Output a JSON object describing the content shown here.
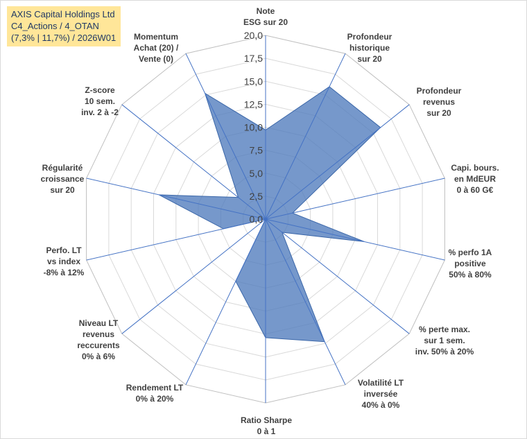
{
  "header": {
    "lines": [
      "AXIS Capital Holdings Ltd",
      "C4_Actions / 4_OTAN",
      "(7,3% | 11,7%) / 2026W01"
    ]
  },
  "chart_data": {
    "type": "radar",
    "title": "AXIS Capital Holdings Ltd",
    "rmin": 0,
    "rmax": 20,
    "tick_step": 2.5,
    "tick_labels": [
      "0,0",
      "2,5",
      "5,0",
      "7,5",
      "10,0",
      "12,5",
      "15,0",
      "17,5",
      "20,0"
    ],
    "grid": true,
    "axes": [
      {
        "label": [
          "Note",
          "ESG sur 20"
        ]
      },
      {
        "label": [
          "Profondeur",
          "historique",
          "sur 20"
        ]
      },
      {
        "label": [
          "Profondeur",
          "revenus",
          "sur 20"
        ]
      },
      {
        "label": [
          "Capi. bours.",
          "en MdEUR",
          "0 à 60 G€"
        ]
      },
      {
        "label": [
          "% perfo 1A",
          "positive",
          "50% à 80%"
        ]
      },
      {
        "label": [
          "% perte max.",
          "sur 1 sem.",
          "inv. 50% à 20%"
        ]
      },
      {
        "label": [
          "Volatilité LT",
          "inversée",
          "40% à 0%"
        ]
      },
      {
        "label": [
          "Ratio Sharpe",
          "0 à 1"
        ]
      },
      {
        "label": [
          "Rendement LT",
          "0% à 20%"
        ]
      },
      {
        "label": [
          "Niveau LT",
          "revenus",
          "reccurents",
          "0% à 6%"
        ]
      },
      {
        "label": [
          "Perfo. LT",
          "vs index",
          "-8% à 12%"
        ]
      },
      {
        "label": [
          "Régularité",
          "croissance",
          "sur 20"
        ]
      },
      {
        "label": [
          "Z-score",
          "10 sem.",
          "inv. 2 à -2"
        ]
      },
      {
        "label": [
          "Momentum",
          "Achat (20) /",
          "Vente (0)"
        ]
      }
    ],
    "series": [
      {
        "name": "AXIS Capital Holdings Ltd",
        "values": [
          9.7,
          16.0,
          16.0,
          3.0,
          11.0,
          2.3,
          14.8,
          12.9,
          7.5,
          0.0,
          4.7,
          11.9,
          3.8,
          15.2
        ],
        "color": "#4f7bbd"
      }
    ]
  }
}
